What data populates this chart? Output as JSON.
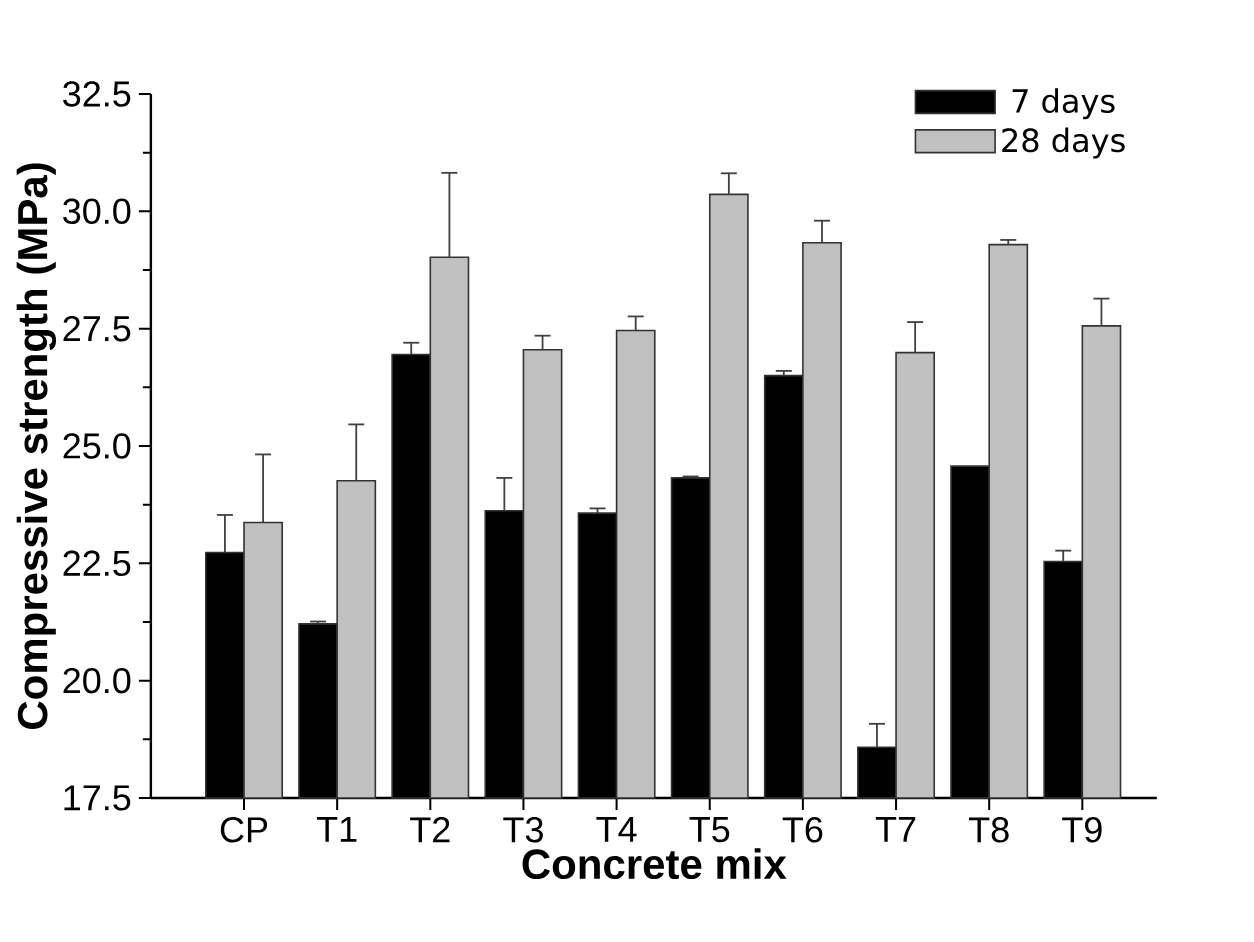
{
  "chart_data": {
    "type": "bar",
    "xlabel": "Concrete mix",
    "ylabel": "Compressive strength (MPa)",
    "categories": [
      "CP",
      "T1",
      "T2",
      "T3",
      "T4",
      "T5",
      "T6",
      "T7",
      "T8",
      "T9"
    ],
    "series": [
      {
        "name": "7 days",
        "color": "#000000",
        "values": [
          22.73,
          21.21,
          26.95,
          23.62,
          23.57,
          24.32,
          26.5,
          18.58,
          24.57,
          22.54
        ],
        "errors": [
          0.8,
          0.05,
          0.25,
          0.7,
          0.1,
          0.03,
          0.1,
          0.5,
          null,
          0.23
        ]
      },
      {
        "name": "28 days",
        "color": "#c0c0c0",
        "values": [
          23.37,
          24.26,
          29.02,
          27.05,
          27.46,
          30.36,
          29.33,
          26.99,
          29.29,
          27.56
        ],
        "errors": [
          1.45,
          1.2,
          1.8,
          0.3,
          0.3,
          0.45,
          0.47,
          0.65,
          0.1,
          0.58
        ]
      }
    ],
    "ylim": [
      17.5,
      32.5
    ],
    "yticks": [
      17.5,
      {
        "value": 20,
        "label": "20.0"
      },
      22.5,
      {
        "value": 25,
        "label": "25.0"
      },
      27.5,
      {
        "value": 30,
        "label": "30.0"
      },
      32.5
    ],
    "legend": "top right"
  }
}
